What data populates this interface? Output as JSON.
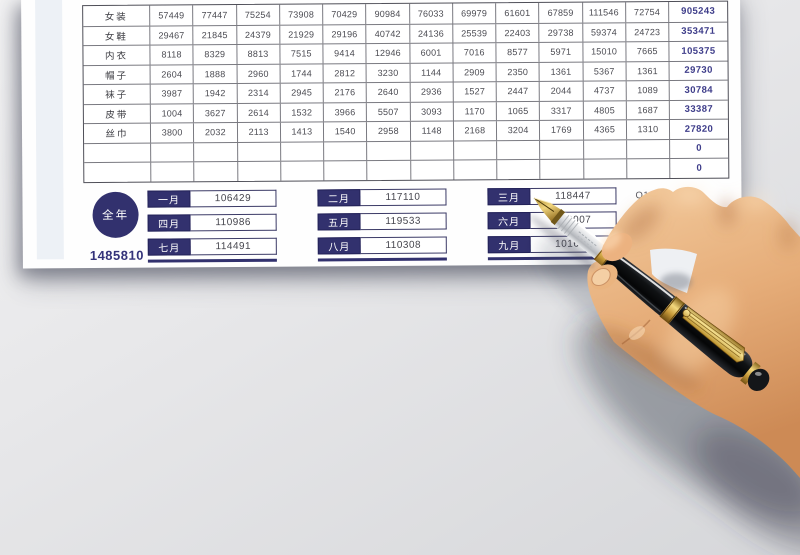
{
  "table": {
    "product_rows": [
      {
        "label": "女装",
        "values": [
          "57449",
          "77447",
          "75254",
          "73908",
          "70429",
          "90984",
          "76033",
          "69979",
          "61601",
          "67859",
          "111546",
          "72754"
        ],
        "total": "905243"
      },
      {
        "label": "女鞋",
        "values": [
          "29467",
          "21845",
          "24379",
          "21929",
          "29196",
          "40742",
          "24136",
          "25539",
          "22403",
          "29738",
          "59374",
          "24723"
        ],
        "total": "353471"
      },
      {
        "label": "内衣",
        "values": [
          "8118",
          "8329",
          "8813",
          "7515",
          "9414",
          "12946",
          "6001",
          "7016",
          "8577",
          "5971",
          "15010",
          "7665"
        ],
        "total": "105375"
      },
      {
        "label": "帽子",
        "values": [
          "2604",
          "1888",
          "2960",
          "1744",
          "2812",
          "3230",
          "1144",
          "2909",
          "2350",
          "1361",
          "5367",
          "1361"
        ],
        "total": "29730"
      },
      {
        "label": "袜子",
        "values": [
          "3987",
          "1942",
          "2314",
          "2945",
          "2176",
          "2640",
          "2936",
          "1527",
          "2447",
          "2044",
          "4737",
          "1089"
        ],
        "total": "30784"
      },
      {
        "label": "皮带",
        "values": [
          "1004",
          "3627",
          "2614",
          "1532",
          "3966",
          "5507",
          "3093",
          "1170",
          "1065",
          "3317",
          "4805",
          "1687"
        ],
        "total": "33387"
      },
      {
        "label": "丝巾",
        "values": [
          "3800",
          "2032",
          "2113",
          "1413",
          "1540",
          "2958",
          "1148",
          "2168",
          "3204",
          "1769",
          "4365",
          "1310"
        ],
        "total": "27820"
      }
    ],
    "empty_rows": [
      {
        "total": "0"
      },
      {
        "total": "0"
      }
    ]
  },
  "summary": {
    "year_label": "全年",
    "year_total": "1485810",
    "quarter_label": "Q1",
    "month_groups": [
      [
        {
          "label": "一月",
          "value": "106429"
        },
        {
          "label": "四月",
          "value": "110986"
        },
        {
          "label": "七月",
          "value": "114491"
        }
      ],
      [
        {
          "label": "二月",
          "value": "117110"
        },
        {
          "label": "五月",
          "value": "119533"
        },
        {
          "label": "八月",
          "value": "110308"
        }
      ],
      [
        {
          "label": "三月",
          "value": "118447"
        },
        {
          "label": "六月",
          "value": "159007"
        },
        {
          "label": "九月",
          "value": "101647"
        }
      ]
    ]
  },
  "colors": {
    "accent_navy": "#32316e",
    "total_text_navy": "#3e3d8a",
    "paper": "#fefefe",
    "background_gray": "#e3e3e6"
  }
}
